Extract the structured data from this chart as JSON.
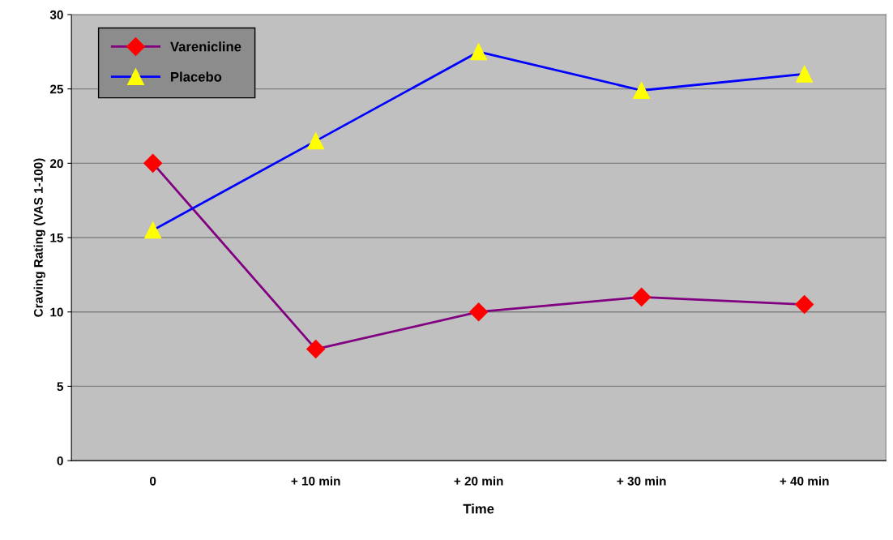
{
  "chart_data": {
    "type": "line",
    "xlabel": "Time",
    "ylabel": "Craving Rating (VAS 1-100)",
    "categories": [
      "0",
      "+ 10 min",
      "+ 20 min",
      "+ 30 min",
      "+ 40 min"
    ],
    "series": [
      {
        "name": "Varenicline",
        "color": "#800080",
        "marker": "diamond",
        "colors": [
          "#ff0000",
          "#ff0000",
          "#ff0000",
          "#ff0000",
          "#ff0000"
        ],
        "values": [
          20,
          7.5,
          10,
          11,
          10.5
        ]
      },
      {
        "name": "Placebo",
        "color": "#0000ff",
        "marker": "triangle",
        "colors": [
          "#ffff00",
          "#ffff00",
          "#ffff00",
          "#ffff00",
          "#ffff00"
        ],
        "values": [
          15.5,
          21.5,
          27.5,
          24.9,
          26
        ]
      }
    ],
    "ylim": [
      0,
      30
    ],
    "yticks": [
      0,
      5,
      10,
      15,
      20,
      25,
      30
    ],
    "grid": "y",
    "legend": "top left",
    "line_style": "solid"
  }
}
